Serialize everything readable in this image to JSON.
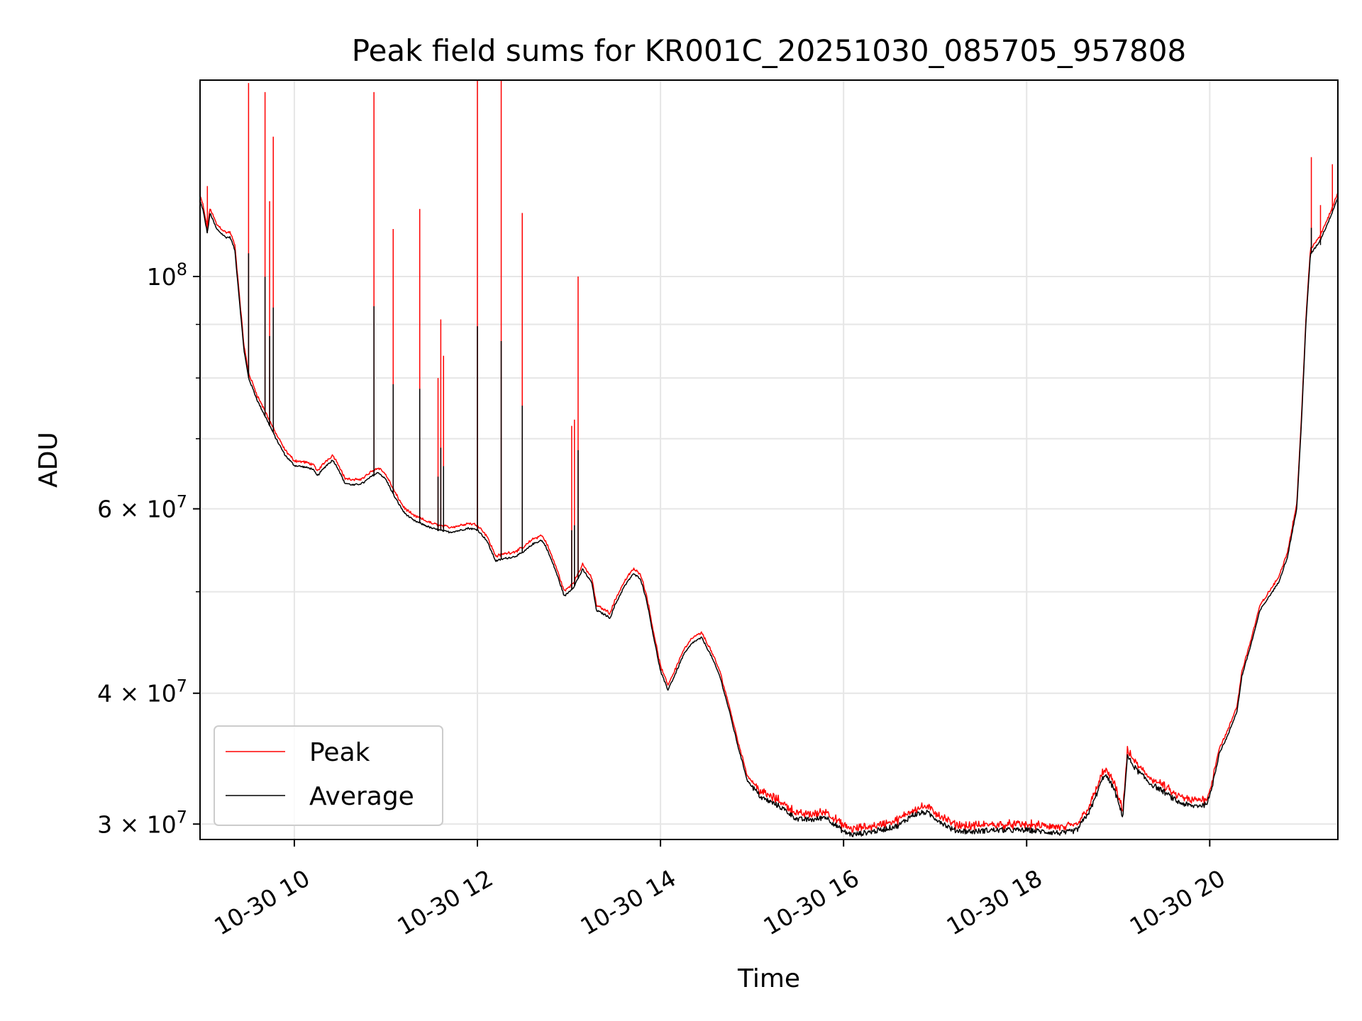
{
  "chart_data": {
    "type": "line",
    "title": "Peak field sums for KR001C_20251030_085705_957808",
    "xlabel": "Time",
    "ylabel": "ADU",
    "yscale": "log",
    "xlim": [
      8.97,
      21.4
    ],
    "ylim": [
      29000000,
      154000000
    ],
    "grid": true,
    "legend_position": "lower-left",
    "x_ticks": [
      {
        "value": 10,
        "label": "10-30 10"
      },
      {
        "value": 12,
        "label": "10-30 12"
      },
      {
        "value": 14,
        "label": "10-30 14"
      },
      {
        "value": 16,
        "label": "10-30 16"
      },
      {
        "value": 18,
        "label": "10-30 18"
      },
      {
        "value": 20,
        "label": "10-30 20"
      }
    ],
    "y_ticks": [
      {
        "value": 30000000,
        "mantissa": "3",
        "exponent": "7"
      },
      {
        "value": 40000000,
        "mantissa": "4",
        "exponent": "7"
      },
      {
        "value": 60000000,
        "mantissa": "6",
        "exponent": "7"
      },
      {
        "value": 100000000,
        "mantissa": "",
        "exponent": "8"
      }
    ],
    "y_minor_ticks": [
      50000000,
      70000000,
      80000000,
      90000000
    ],
    "times_symbol": "×",
    "base": "10",
    "series": [
      {
        "name": "Peak",
        "color": "#ff0000",
        "baseline_offset": 1.01,
        "spikes": [
          {
            "x": 9.05,
            "y": 122000000
          },
          {
            "x": 9.5,
            "y": 153000000
          },
          {
            "x": 9.68,
            "y": 150000000
          },
          {
            "x": 9.73,
            "y": 118000000
          },
          {
            "x": 9.77,
            "y": 136000000
          },
          {
            "x": 10.87,
            "y": 150000000
          },
          {
            "x": 11.08,
            "y": 111000000
          },
          {
            "x": 11.37,
            "y": 116000000
          },
          {
            "x": 11.57,
            "y": 80000000
          },
          {
            "x": 11.6,
            "y": 91000000
          },
          {
            "x": 11.63,
            "y": 84000000
          },
          {
            "x": 12.0,
            "y": 155000000
          },
          {
            "x": 12.26,
            "y": 155000000
          },
          {
            "x": 12.49,
            "y": 115000000
          },
          {
            "x": 13.03,
            "y": 72000000
          },
          {
            "x": 13.06,
            "y": 73000000
          },
          {
            "x": 13.1,
            "y": 100000000
          },
          {
            "x": 21.11,
            "y": 130000000
          },
          {
            "x": 21.21,
            "y": 117000000
          },
          {
            "x": 21.34,
            "y": 128000000
          }
        ]
      },
      {
        "name": "Average",
        "color": "#000000",
        "points": [
          [
            8.97,
            118000000
          ],
          [
            9.0,
            116000000
          ],
          [
            9.05,
            110000000
          ],
          [
            9.08,
            115000000
          ],
          [
            9.15,
            111000000
          ],
          [
            9.25,
            109000000
          ],
          [
            9.3,
            109000000
          ],
          [
            9.35,
            106000000
          ],
          [
            9.4,
            95000000
          ],
          [
            9.45,
            85000000
          ],
          [
            9.5,
            80000000
          ],
          [
            9.6,
            76000000
          ],
          [
            9.7,
            73000000
          ],
          [
            9.8,
            70000000
          ],
          [
            9.9,
            67500000
          ],
          [
            10.0,
            66000000
          ],
          [
            10.1,
            65800000
          ],
          [
            10.2,
            65500000
          ],
          [
            10.25,
            64500000
          ],
          [
            10.35,
            66000000
          ],
          [
            10.42,
            66800000
          ],
          [
            10.48,
            65500000
          ],
          [
            10.55,
            63500000
          ],
          [
            10.65,
            63200000
          ],
          [
            10.75,
            63500000
          ],
          [
            10.85,
            64500000
          ],
          [
            10.92,
            65000000
          ],
          [
            11.0,
            64000000
          ],
          [
            11.1,
            61500000
          ],
          [
            11.2,
            59500000
          ],
          [
            11.3,
            58500000
          ],
          [
            11.4,
            58000000
          ],
          [
            11.5,
            57500000
          ],
          [
            11.6,
            57200000
          ],
          [
            11.7,
            57000000
          ],
          [
            11.8,
            57200000
          ],
          [
            11.9,
            57500000
          ],
          [
            12.0,
            57300000
          ],
          [
            12.1,
            56000000
          ],
          [
            12.2,
            53500000
          ],
          [
            12.3,
            53800000
          ],
          [
            12.4,
            54000000
          ],
          [
            12.5,
            54500000
          ],
          [
            12.6,
            55500000
          ],
          [
            12.7,
            56000000
          ],
          [
            12.75,
            55200000
          ],
          [
            12.85,
            52500000
          ],
          [
            12.95,
            49500000
          ],
          [
            13.05,
            50500000
          ],
          [
            13.15,
            52500000
          ],
          [
            13.25,
            51000000
          ],
          [
            13.3,
            48000000
          ],
          [
            13.4,
            47500000
          ],
          [
            13.45,
            47200000
          ],
          [
            13.5,
            48500000
          ],
          [
            13.6,
            50500000
          ],
          [
            13.7,
            52000000
          ],
          [
            13.78,
            51500000
          ],
          [
            13.85,
            49000000
          ],
          [
            13.92,
            45500000
          ],
          [
            14.0,
            42000000
          ],
          [
            14.08,
            40300000
          ],
          [
            14.15,
            41500000
          ],
          [
            14.25,
            43500000
          ],
          [
            14.35,
            44700000
          ],
          [
            14.45,
            45200000
          ],
          [
            14.55,
            43500000
          ],
          [
            14.65,
            41500000
          ],
          [
            14.75,
            38500000
          ],
          [
            14.85,
            35500000
          ],
          [
            14.95,
            33000000
          ],
          [
            15.1,
            31800000
          ],
          [
            15.3,
            31200000
          ],
          [
            15.5,
            30300000
          ],
          [
            15.7,
            30300000
          ],
          [
            15.8,
            30500000
          ],
          [
            15.9,
            30000000
          ],
          [
            16.0,
            29500000
          ],
          [
            16.1,
            29300000
          ],
          [
            16.2,
            29400000
          ],
          [
            16.4,
            29600000
          ],
          [
            16.6,
            29900000
          ],
          [
            16.75,
            30600000
          ],
          [
            16.9,
            30800000
          ],
          [
            17.05,
            30200000
          ],
          [
            17.2,
            29600000
          ],
          [
            17.4,
            29500000
          ],
          [
            17.6,
            29600000
          ],
          [
            17.8,
            29600000
          ],
          [
            18.0,
            29600000
          ],
          [
            18.2,
            29500000
          ],
          [
            18.4,
            29400000
          ],
          [
            18.55,
            29600000
          ],
          [
            18.7,
            31000000
          ],
          [
            18.85,
            33500000
          ],
          [
            18.95,
            32500000
          ],
          [
            19.05,
            30500000
          ],
          [
            19.1,
            34800000
          ],
          [
            19.2,
            33800000
          ],
          [
            19.35,
            32800000
          ],
          [
            19.5,
            32200000
          ],
          [
            19.65,
            31500000
          ],
          [
            19.8,
            31200000
          ],
          [
            19.95,
            31300000
          ],
          [
            20.0,
            31800000
          ],
          [
            20.1,
            35000000
          ],
          [
            20.2,
            36500000
          ],
          [
            20.3,
            38500000
          ],
          [
            20.35,
            41500000
          ],
          [
            20.45,
            44500000
          ],
          [
            20.55,
            48000000
          ],
          [
            20.65,
            49500000
          ],
          [
            20.75,
            51000000
          ],
          [
            20.85,
            54000000
          ],
          [
            20.95,
            60000000
          ],
          [
            21.0,
            72000000
          ],
          [
            21.05,
            90000000
          ],
          [
            21.1,
            105000000
          ],
          [
            21.2,
            108000000
          ],
          [
            21.3,
            113000000
          ],
          [
            21.4,
            119000000
          ]
        ]
      }
    ]
  }
}
